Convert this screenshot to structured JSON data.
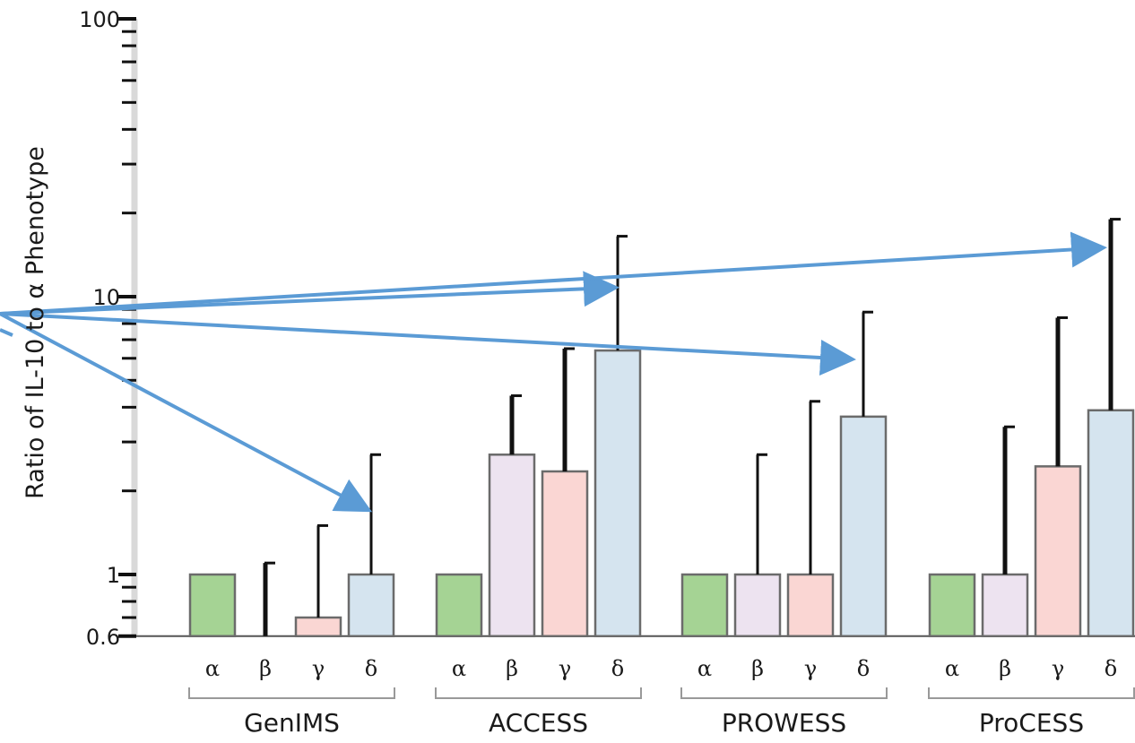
{
  "chart_data": {
    "type": "bar",
    "ylabel": "Ratio of IL-10 to α Phenotype",
    "yscale": "log",
    "ylim": [
      0.6,
      100
    ],
    "y_tick_labels": [
      "100",
      "10",
      "1",
      "0.6"
    ],
    "groups": [
      "GenIMS",
      "ACCESS",
      "PROWESS",
      "ProCESS"
    ],
    "phenotypes": [
      "α",
      "β",
      "γ",
      "δ"
    ],
    "phenotype_colors": [
      "#a5d394",
      "#ede3f0",
      "#fad6d3",
      "#d5e4ef"
    ],
    "series": [
      {
        "name": "α",
        "values": [
          1,
          1,
          1,
          1
        ],
        "error_upper": [
          null,
          null,
          null,
          null
        ]
      },
      {
        "name": "β",
        "values": [
          0.6,
          2.7,
          1,
          1
        ],
        "error_upper": [
          1.1,
          4.4,
          2.7,
          3.4
        ]
      },
      {
        "name": "γ",
        "values": [
          0.7,
          2.35,
          1,
          2.45
        ],
        "error_upper": [
          1.5,
          6.5,
          4.2,
          8.4
        ]
      },
      {
        "name": "δ",
        "values": [
          1,
          6.4,
          3.7,
          3.9
        ],
        "error_upper": [
          2.7,
          16.5,
          8.8,
          19
        ]
      }
    ],
    "annotation_arrows": "arrows pointing to δ error bars",
    "grid": false
  }
}
